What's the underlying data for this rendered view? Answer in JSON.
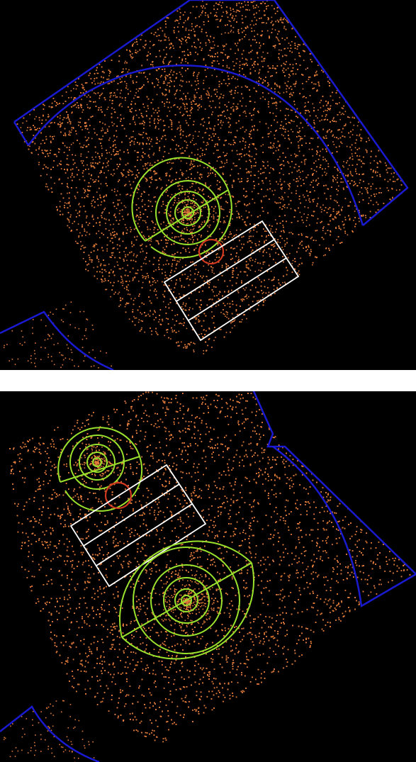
{
  "colors": {
    "background": "#000000",
    "separator": "#ffffff",
    "events": "#e07a3a",
    "ccd_boundary": "#1a1ad0",
    "source_regions": "#9be22d",
    "point_source_circle": "#d23a20",
    "background_boxes": "#ffffff"
  },
  "panels": [
    {
      "id": "top",
      "description_icon": "x-ray-event-map",
      "regions": [
        "ccd-boundary",
        "concentric-annuli",
        "excluded-circle",
        "rectangular-strips"
      ]
    },
    {
      "id": "bottom",
      "description_icon": "x-ray-event-map",
      "regions": [
        "ccd-boundary",
        "concentric-annuli",
        "concentric-annuli",
        "excluded-circle",
        "rectangular-strips"
      ]
    }
  ]
}
